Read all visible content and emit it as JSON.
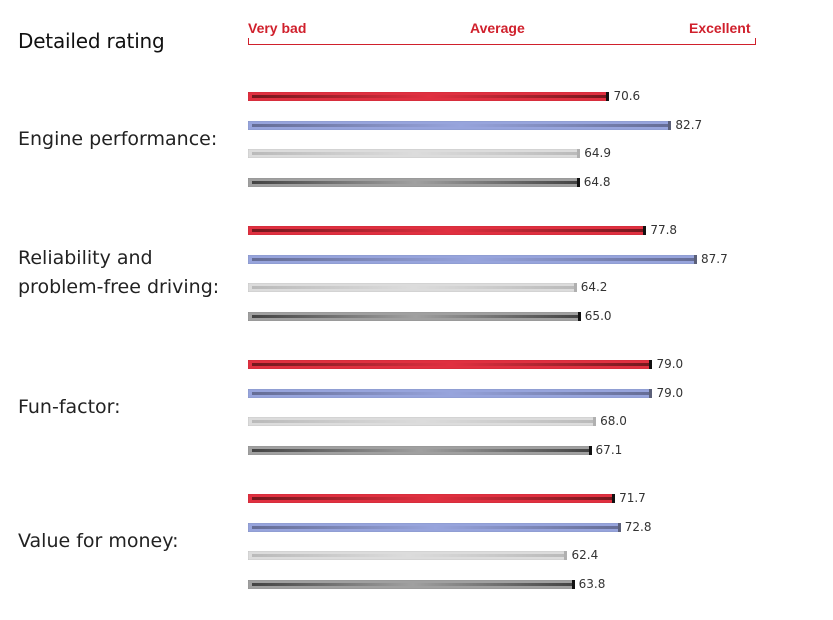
{
  "chart_data": {
    "type": "bar",
    "orientation": "horizontal",
    "title": "Detailed rating",
    "scale_labels": {
      "low": "Very bad",
      "mid": "Average",
      "high": "Excellent"
    },
    "xlim": [
      0,
      100
    ],
    "series_colors": [
      {
        "fill": "#e03040",
        "streak": "#3a0a0a",
        "cap": "#111111"
      },
      {
        "fill": "#97a4dc",
        "streak": "#4a4f70",
        "cap": "#5b6079"
      },
      {
        "fill": "#dcdcdc",
        "streak": "#a8a8a8",
        "cap": "#b0b0b0"
      },
      {
        "fill": "#a0a0a0",
        "streak": "#111111",
        "cap": "#111111"
      }
    ],
    "categories": [
      {
        "label": "Engine performance:",
        "values": [
          70.6,
          82.7,
          64.9,
          64.8
        ]
      },
      {
        "label": "Reliability and\nproblem-free driving:",
        "values": [
          77.8,
          87.7,
          64.2,
          65.0
        ]
      },
      {
        "label": "Fun-factor:",
        "values": [
          79.0,
          79.0,
          68.0,
          67.1
        ]
      },
      {
        "label": "Value for money:",
        "values": [
          71.7,
          72.8,
          62.4,
          63.8
        ]
      }
    ]
  }
}
